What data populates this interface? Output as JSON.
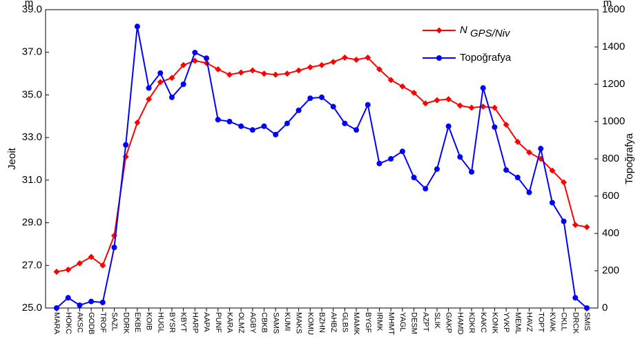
{
  "chart_data": {
    "type": "line",
    "categories": [
      "MARA",
      "HOKC",
      "AKSC",
      "GODB",
      "TROF",
      "SAZL",
      "DDRK",
      "EKBE",
      "KOIB",
      "HUGL",
      "BYSR",
      "KBYT",
      "HARP",
      "AAPA",
      "PUNF",
      "KARA",
      "OLMZ",
      "AGBY",
      "CBKB",
      "SAMS",
      "KUMI",
      "MAKS",
      "KOMU",
      "BZHN",
      "AHBZ",
      "GLBS",
      "MAMK",
      "BYGF",
      "IRMK",
      "MHMT",
      "YAGL",
      "DESM",
      "AZPT",
      "SLIK",
      "GAKP",
      "HAMD",
      "KDKR",
      "KAKC",
      "KONK",
      "YVKP",
      "MEML",
      "HAVZ",
      "TOPT",
      "KVAK",
      "CKLL",
      "DRCK",
      "SMIS"
    ],
    "series": [
      {
        "name": "N",
        "subscript": "GPS/Niv",
        "color": "#ff0000",
        "marker": "diamond",
        "values": [
          26.7,
          26.8,
          27.1,
          27.4,
          27.0,
          28.4,
          32.1,
          33.7,
          34.8,
          35.6,
          35.8,
          36.4,
          36.6,
          36.5,
          36.2,
          35.95,
          36.05,
          36.15,
          36.0,
          35.95,
          36.0,
          36.15,
          36.3,
          36.4,
          36.55,
          36.75,
          36.65,
          36.75,
          36.2,
          35.7,
          35.4,
          35.1,
          34.6,
          34.75,
          34.8,
          34.5,
          34.4,
          34.45,
          34.4,
          33.6,
          32.8,
          32.3,
          32.0,
          31.45,
          30.9,
          28.9,
          28.8
        ]
      },
      {
        "name": "Topoğrafya",
        "color": "#0000ff",
        "marker": "circle",
        "axis": "y2",
        "values": [
          0,
          55,
          15,
          35,
          30,
          325,
          875,
          1510,
          1180,
          1260,
          1130,
          1200,
          1370,
          1340,
          1010,
          1000,
          975,
          955,
          975,
          930,
          990,
          1060,
          1125,
          1130,
          1080,
          990,
          955,
          1090,
          775,
          800,
          840,
          700,
          640,
          745,
          975,
          810,
          730,
          1180,
          970,
          740,
          700,
          620,
          855,
          565,
          465,
          55,
          0
        ]
      }
    ],
    "y_label": "Jeoit",
    "y_unit": "m",
    "y2_label": "Topoğrafya",
    "y2_unit": "m",
    "ylim": [
      25,
      39
    ],
    "yticks": [
      {
        "value": 25,
        "label": "25.0"
      },
      {
        "value": 27,
        "label": "27.0"
      },
      {
        "value": 29,
        "label": "29.0"
      },
      {
        "value": 31,
        "label": "31.0"
      },
      {
        "value": 33,
        "label": "33.0"
      },
      {
        "value": 35,
        "label": "35.0"
      },
      {
        "value": 37,
        "label": "37.0"
      },
      {
        "value": 39,
        "label": "39.0"
      }
    ],
    "y2lim": [
      0,
      1600
    ],
    "y2ticks": [
      0,
      200,
      400,
      600,
      800,
      1000,
      1200,
      1400,
      1600
    ],
    "legend": "top-right"
  }
}
